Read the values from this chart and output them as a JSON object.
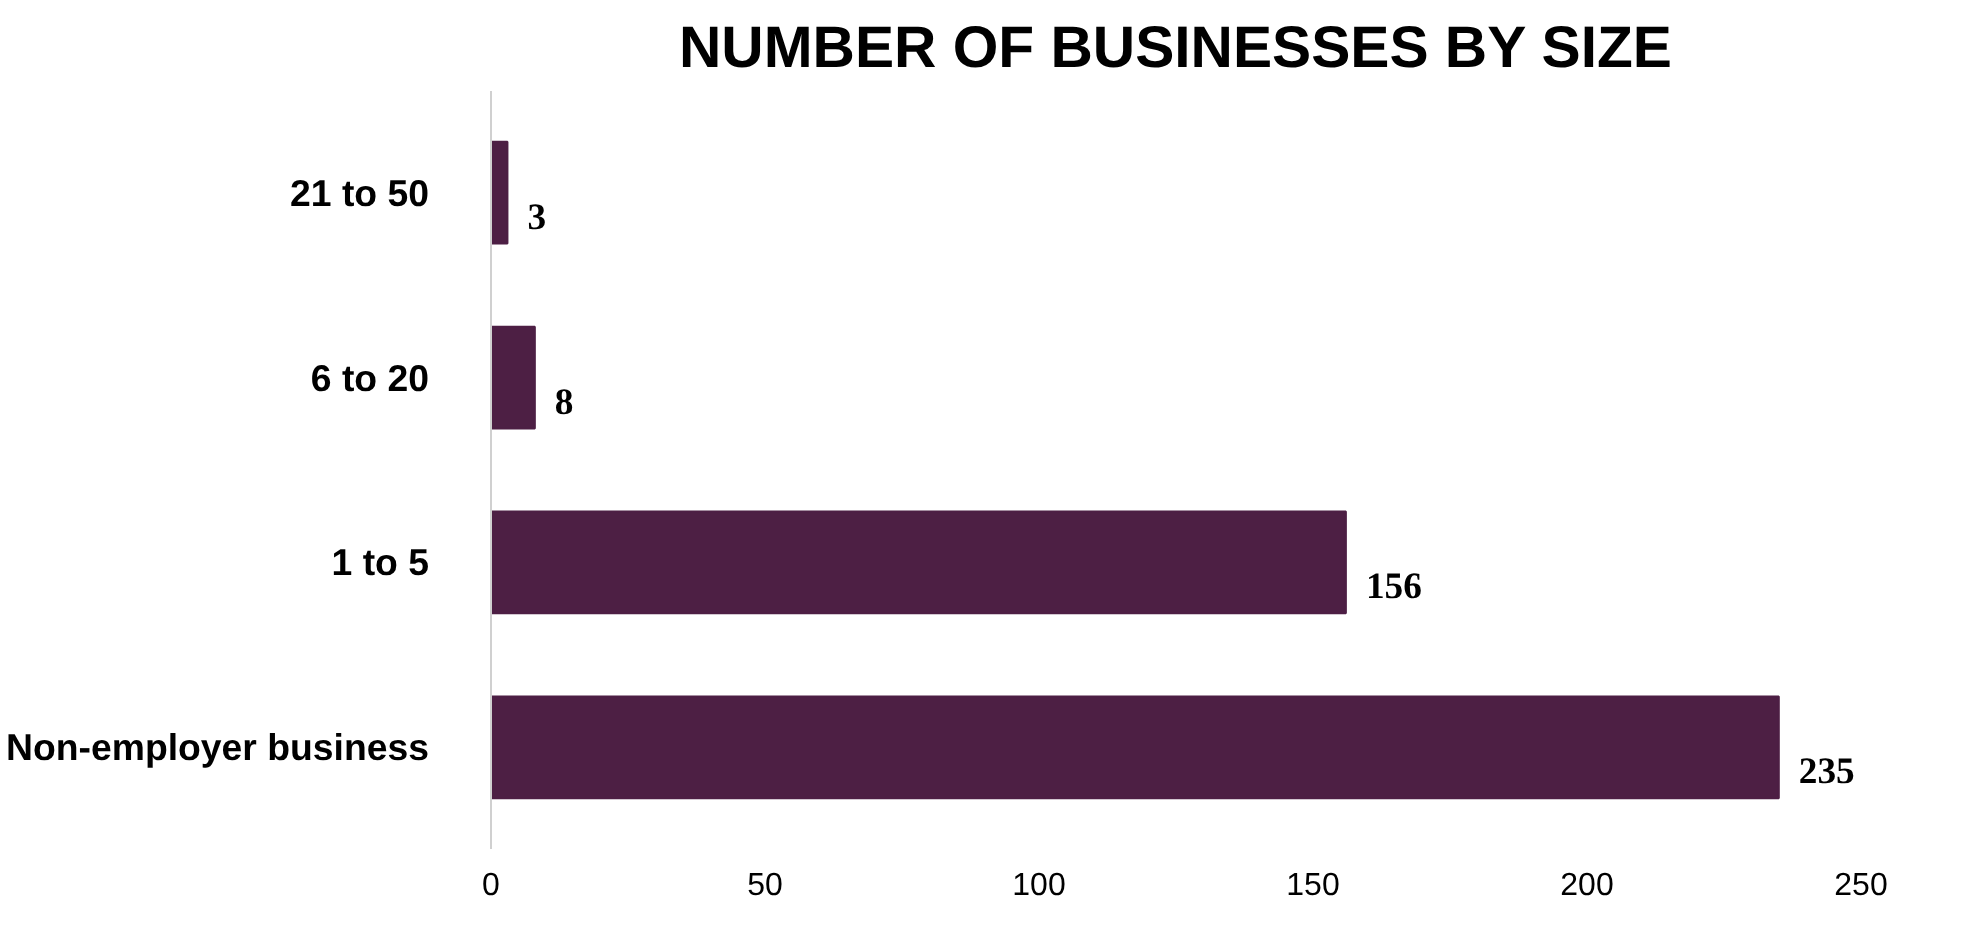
{
  "chart_data": {
    "type": "bar",
    "orientation": "horizontal",
    "title": "NUMBER OF BUSINESSES BY SIZE",
    "categories": [
      "21 to 50",
      "6 to 20",
      "1 to 5",
      "Non-employer business"
    ],
    "values": [
      3,
      8,
      156,
      235
    ],
    "color": "#4d1f44",
    "xlim": [
      0,
      250
    ],
    "xticks": [
      0,
      50,
      100,
      150,
      200,
      250
    ],
    "grid": false,
    "data_labels": true
  }
}
